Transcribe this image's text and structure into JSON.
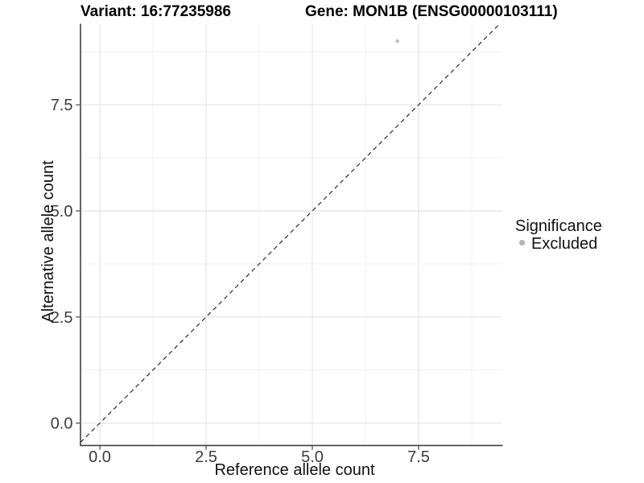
{
  "chart_data": {
    "type": "scatter",
    "titles": {
      "left": "Variant: 16:77235986",
      "right": "Gene: MON1B (ENSG00000103111)"
    },
    "xlabel": "Reference allele count",
    "ylabel": "Alternative allele count",
    "xlim": [
      -0.455,
      9.47
    ],
    "ylim": [
      -0.52,
      9.4
    ],
    "x_ticks": [
      {
        "value": 0,
        "label": "0.0"
      },
      {
        "value": 2.5,
        "label": "2.5"
      },
      {
        "value": 5,
        "label": "5.0"
      },
      {
        "value": 7.5,
        "label": "7.5"
      }
    ],
    "y_ticks": [
      {
        "value": 0,
        "label": "0.0"
      },
      {
        "value": 2.5,
        "label": "2.5"
      },
      {
        "value": 5,
        "label": "5.0"
      },
      {
        "value": 7.5,
        "label": "7.5"
      }
    ],
    "x_minor_ticks": [
      1.25,
      3.75,
      6.25,
      8.75
    ],
    "y_minor_ticks": [
      1.25,
      3.75,
      6.25,
      8.75
    ],
    "grid": true,
    "points": [
      {
        "x": 7,
        "y": 9,
        "series": "Excluded"
      }
    ],
    "reference_line": {
      "slope": 1,
      "intercept": 0,
      "style": "dashed",
      "color": "#1a1a1a"
    },
    "legend": {
      "title": "Significance",
      "position": "right",
      "entries": [
        {
          "label": "Excluded",
          "color": "#b4b4b4"
        }
      ]
    },
    "colors": {
      "background": "#ffffff",
      "grid_major": "#e4e4e4",
      "grid_minor": "#f0f0f0",
      "axis": "#404040",
      "tick": "#333333",
      "tick_label": "#3c3c3c",
      "point": "#c2c2c2"
    }
  }
}
